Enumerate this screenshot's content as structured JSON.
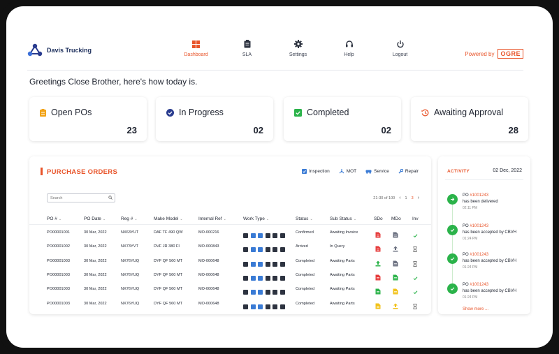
{
  "app": {
    "name": "Davis Trucking"
  },
  "nav": [
    {
      "label": "Dashboard",
      "icon": "dashboard-icon",
      "active": true
    },
    {
      "label": "SLA",
      "icon": "clipboard-icon"
    },
    {
      "label": "Settings",
      "icon": "gear-icon"
    },
    {
      "label": "Help",
      "icon": "headset-icon"
    },
    {
      "label": "Logout",
      "icon": "power-icon"
    }
  ],
  "powered_by": {
    "label": "Powered by",
    "brand": "OGRE"
  },
  "greeting": "Greetings Close Brother, here's how today is.",
  "stats": [
    {
      "title": "Open POs",
      "value": "23",
      "icon": "clipboard-icon",
      "color": "#f2a41a"
    },
    {
      "title": "In Progress",
      "value": "02",
      "icon": "check-circle-icon",
      "color": "#2a3c8f"
    },
    {
      "title": "Completed",
      "value": "02",
      "icon": "check-square-icon",
      "color": "#2bb34a"
    },
    {
      "title": "Awaiting Approval",
      "value": "28",
      "icon": "history-icon",
      "color": "#e8542a"
    }
  ],
  "purchase_orders": {
    "title": "PURCHASE ORDERS",
    "legend": [
      {
        "label": "Inspection",
        "icon": "inspection-icon"
      },
      {
        "label": "MOT",
        "icon": "mot-icon"
      },
      {
        "label": "Service",
        "icon": "service-icon"
      },
      {
        "label": "Repair",
        "icon": "wrench-icon"
      }
    ],
    "search_placeholder": "Search",
    "pager": {
      "range": "21-30 of 100",
      "prev": "‹",
      "first": "1",
      "current": "3",
      "next": "›"
    },
    "columns": [
      "PO #",
      "PO Date",
      "Reg #",
      "Make Model",
      "Internal Ref",
      "Work Type",
      "Status",
      "Sub Status",
      "SDo",
      "MDo",
      "Inv"
    ],
    "rows": [
      {
        "po": "PO00001001",
        "date": "30 Mar, 2022",
        "reg": "NX63YUT",
        "model": "DAF TF 490 QW",
        "ref": "MO-000216",
        "status": "Confirmed",
        "sub": "Awaiting Invoice",
        "sdo": "red-doc",
        "mdo": "grey-doc",
        "inv": "check"
      },
      {
        "po": "PO00001002",
        "date": "30 Mar, 2022",
        "reg": "NX73YVT",
        "model": "DVF JR 380 FI",
        "ref": "MO-000843",
        "status": "Arrived",
        "sub": "In Query",
        "sdo": "red-doc",
        "mdo": "grey-upload",
        "inv": "hourglass"
      },
      {
        "po": "PO00001003",
        "date": "30 Mar, 2022",
        "reg": "NX76YUQ",
        "model": "DYF QF 560 MT",
        "ref": "MO-000648",
        "status": "Completed",
        "sub": "Awaiting Parts",
        "sdo": "green-upload",
        "mdo": "grey-doc",
        "inv": "hourglass"
      },
      {
        "po": "PO00001003",
        "date": "30 Mar, 2022",
        "reg": "NX76YUQ",
        "model": "DYF QF 560 MT",
        "ref": "MO-000648",
        "status": "Completed",
        "sub": "Awaiting Parts",
        "sdo": "red-doc",
        "mdo": "green-doc",
        "inv": "check"
      },
      {
        "po": "PO00001003",
        "date": "30 Mar, 2022",
        "reg": "NX76YUQ",
        "model": "DYF QF 560 MT",
        "ref": "MO-000648",
        "status": "Completed",
        "sub": "Awaiting Parts",
        "sdo": "green-doc",
        "mdo": "yellow-doc",
        "inv": "check"
      },
      {
        "po": "PO00001003",
        "date": "30 Mar, 2022",
        "reg": "NX76YUQ",
        "model": "DYF QF 560 MT",
        "ref": "MO-000648",
        "status": "Completed",
        "sub": "Awaiting Parts",
        "sdo": "yellow-doc",
        "mdo": "yellow-upload",
        "inv": "hourglass"
      }
    ]
  },
  "activity": {
    "title": "ACTIVITY",
    "date": "02 Dec, 2022",
    "items": [
      {
        "prefix": "PO",
        "ref": "#1001243",
        "text": "has been delivered",
        "time": "02:11 PM",
        "icon": "arrow-icon"
      },
      {
        "prefix": "PO",
        "ref": "#1001243",
        "text": "has been accepted by CBVH",
        "time": "01:24 PM",
        "icon": "check-icon"
      },
      {
        "prefix": "PO",
        "ref": "#1001243",
        "text": "has been accepted by CBVH",
        "time": "01:24 PM",
        "icon": "check-icon"
      },
      {
        "prefix": "PO",
        "ref": "#1001243",
        "text": "has been accepted by CBVH",
        "time": "01:24 PM",
        "icon": "check-icon"
      }
    ],
    "show_more": "Show more ..."
  },
  "colors": {
    "accent": "#e8542a",
    "success": "#2bb34a",
    "navy": "#1d2f5c",
    "warning": "#f2a41a",
    "danger": "#e63b3b"
  }
}
